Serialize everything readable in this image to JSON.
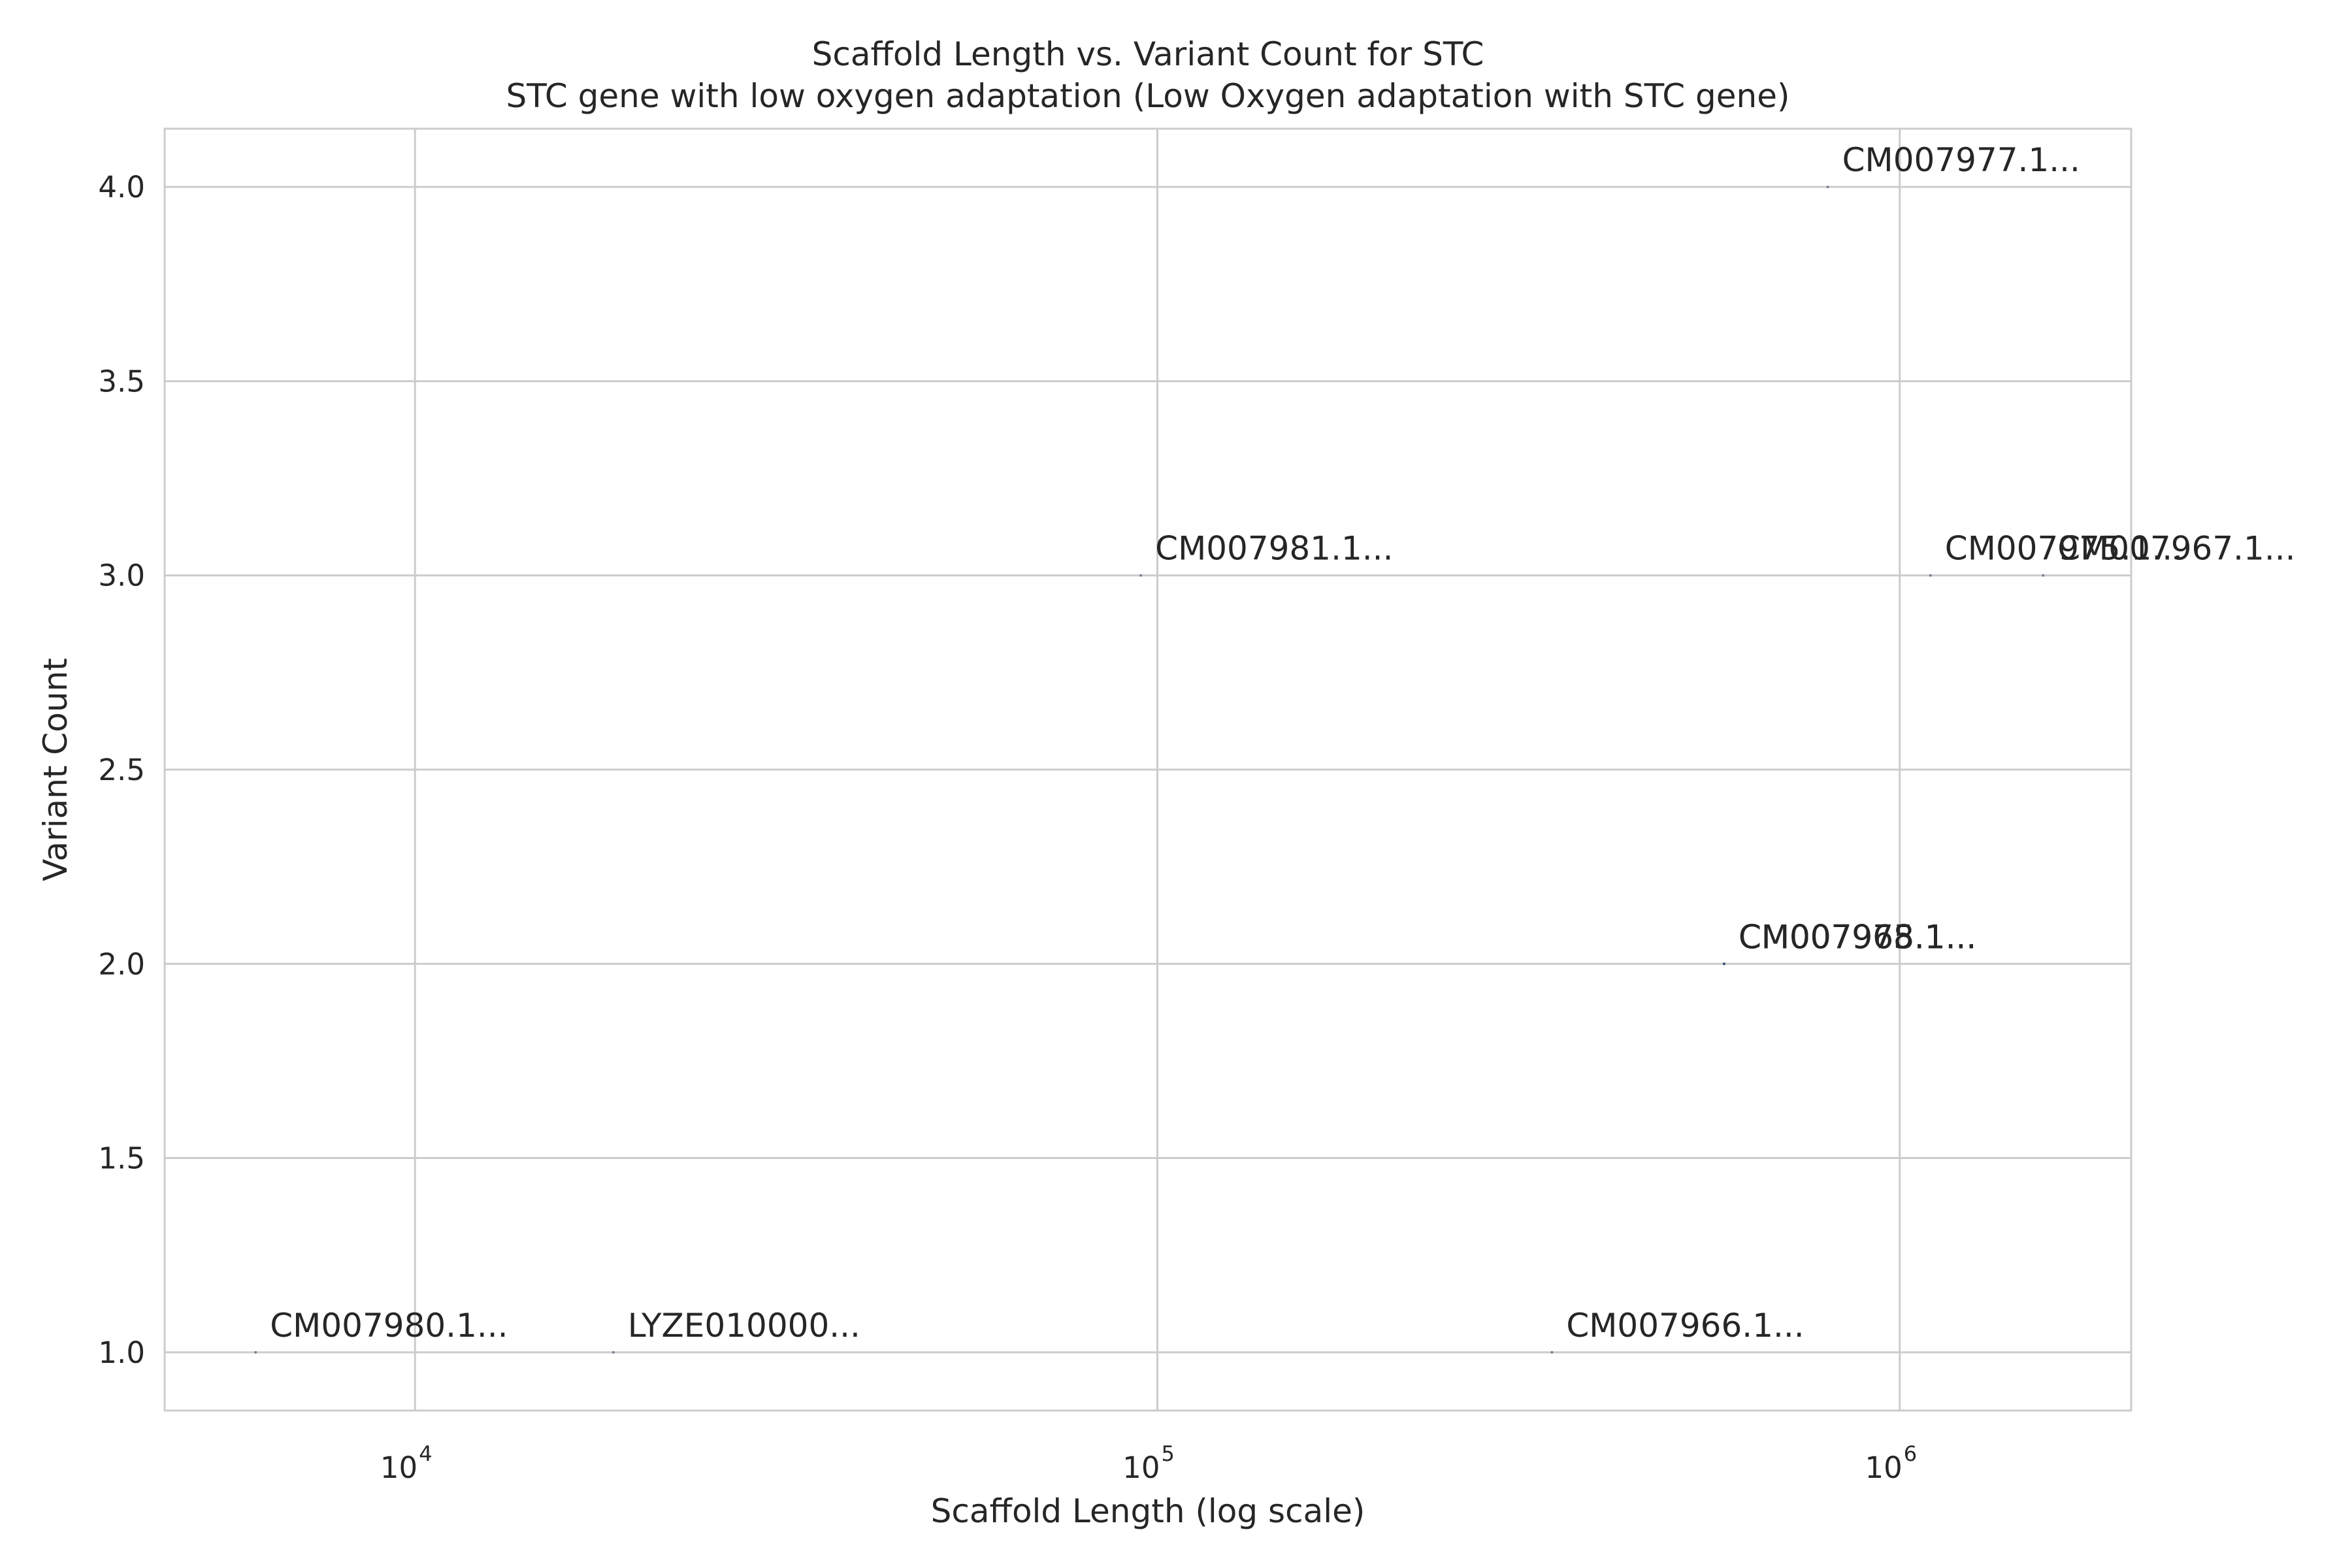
{
  "chart_data": {
    "type": "scatter",
    "title": "Scaffold Length vs. Variant Count for STC",
    "subtitle": "STC gene with low oxygen adaptation (Low Oxygen adaptation with STC gene)",
    "xlabel": "Scaffold Length (log scale)",
    "ylabel": "Variant Count",
    "xscale": "log",
    "xlim": [
      4600,
      2050000
    ],
    "ylim": [
      0.85,
      4.15
    ],
    "grid": true,
    "x_ticks": [
      {
        "base": "10",
        "exp": "4",
        "value": 10000
      },
      {
        "base": "10",
        "exp": "5",
        "value": 100000
      },
      {
        "base": "10",
        "exp": "6",
        "value": 1000000
      }
    ],
    "y_ticks": [
      "1.0",
      "1.5",
      "2.0",
      "2.5",
      "3.0",
      "3.5",
      "4.0"
    ],
    "points": [
      {
        "label": "CM007980.1...",
        "x": 6100,
        "y": 1
      },
      {
        "label": "LYZE010000...",
        "x": 18500,
        "y": 1
      },
      {
        "label": "CM007966.1...",
        "x": 340000,
        "y": 1
      },
      {
        "label": "CM007981.1...",
        "x": 95000,
        "y": 3
      },
      {
        "label": "CM007977.1...",
        "x": 800000,
        "y": 4
      },
      {
        "label": "CM007975.1...",
        "x": 1100000,
        "y": 3
      },
      {
        "label": "CM007967.1...",
        "x": 1560000,
        "y": 3
      },
      {
        "label": "CM007978.1...",
        "x": 580000,
        "y": 2
      },
      {
        "label": "CM007968.1...",
        "x": 580000,
        "y": 2
      },
      {
        "label": "CM007965.1...",
        "x": 580000,
        "y": 2
      }
    ]
  }
}
